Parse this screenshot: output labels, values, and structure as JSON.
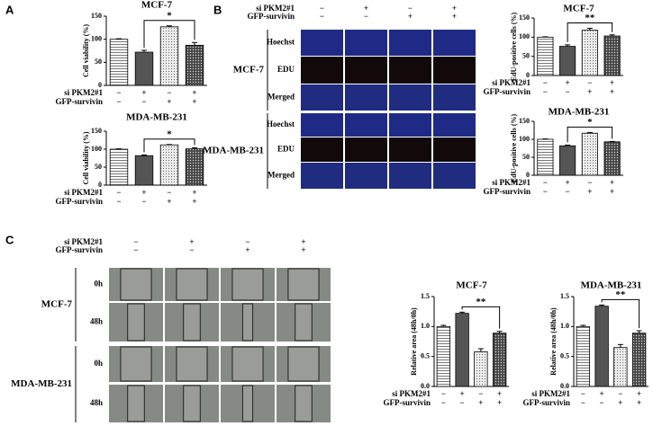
{
  "panel_labels": [
    "A",
    "B",
    "C"
  ],
  "image_grid_b": {
    "conditions": [
      {
        "name": "si PKM2#1",
        "values": [
          "−",
          "+",
          "−",
          "+"
        ]
      },
      {
        "name": "GFP-survivin",
        "values": [
          "−",
          "−",
          "+",
          "+"
        ]
      }
    ],
    "groups": [
      {
        "name": "MCF-7",
        "rows": [
          "Hoechst",
          "EDU",
          "Merged"
        ]
      },
      {
        "name": "MDA-MB-231",
        "rows": [
          "Hoechst",
          "EDU",
          "Merged"
        ]
      }
    ]
  },
  "image_grid_c": {
    "conditions": [
      {
        "name": "si PKM2#1",
        "values": [
          "−",
          "+",
          "−",
          "+"
        ]
      },
      {
        "name": "GFP-survivin",
        "values": [
          "−",
          "−",
          "+",
          "+"
        ]
      }
    ],
    "groups": [
      {
        "name": "MCF-7",
        "rows": [
          "0h",
          "48h"
        ]
      },
      {
        "name": "MDA-MB-231",
        "rows": [
          "0h",
          "48h"
        ]
      }
    ]
  },
  "chart_data": [
    {
      "type": "bar",
      "title": "MCF-7",
      "y_label": "Cell viability (%)",
      "values": [
        100,
        72,
        127,
        87
      ],
      "errors": [
        1,
        4,
        2,
        6
      ],
      "ylim": [
        0,
        150
      ],
      "yticks": [
        0,
        50,
        100,
        150
      ],
      "significance": "*",
      "conditions": [
        {
          "name": "si PKM2#1",
          "values": [
            "−",
            "+",
            "−",
            "+"
          ]
        },
        {
          "name": "GFP-survivin",
          "values": [
            "−",
            "−",
            "+",
            "+"
          ]
        }
      ]
    },
    {
      "type": "bar",
      "title": "MDA-MB-231",
      "y_label": "Cell viability (%)",
      "values": [
        100,
        82,
        112,
        101
      ],
      "errors": [
        1,
        2,
        1,
        3
      ],
      "ylim": [
        0,
        150
      ],
      "yticks": [
        0,
        50,
        100,
        150
      ],
      "significance": "*",
      "conditions": [
        {
          "name": "si PKM2#1",
          "values": [
            "−",
            "+",
            "−",
            "+"
          ]
        },
        {
          "name": "GFP-survivin",
          "values": [
            "−",
            "−",
            "+",
            "+"
          ]
        }
      ]
    },
    {
      "type": "bar",
      "title": "MCF-7",
      "y_label": "EdU-positive cells (%)",
      "values": [
        100,
        76,
        118,
        103
      ],
      "errors": [
        1,
        4,
        5,
        3
      ],
      "ylim": [
        0,
        150
      ],
      "yticks": [
        0,
        50,
        100,
        150
      ],
      "significance": "**",
      "conditions": [
        {
          "name": "si PKM2#1",
          "values": [
            "−",
            "+",
            "−",
            "+"
          ]
        },
        {
          "name": "GFP-survivin",
          "values": [
            "−",
            "−",
            "+",
            "+"
          ]
        }
      ]
    },
    {
      "type": "bar",
      "title": "MDA-MB-231",
      "y_label": "EdU-positive cells (%)",
      "values": [
        100,
        82,
        117,
        93
      ],
      "errors": [
        1,
        2,
        2,
        1
      ],
      "ylim": [
        0,
        150
      ],
      "yticks": [
        0,
        50,
        100,
        150
      ],
      "significance": "*",
      "conditions": [
        {
          "name": "si PKM2#1",
          "values": [
            "−",
            "+",
            "−",
            "+"
          ]
        },
        {
          "name": "GFP-survivin",
          "values": [
            "−",
            "−",
            "+",
            "+"
          ]
        }
      ]
    },
    {
      "type": "bar",
      "title": "MCF-7",
      "y_label": "Relative area (48h/0h)",
      "values": [
        1.0,
        1.22,
        0.58,
        0.89
      ],
      "errors": [
        0.02,
        0.02,
        0.05,
        0.03
      ],
      "ylim": [
        0,
        1.5
      ],
      "yticks": [
        {
          "value": 0,
          "label": "0.0"
        },
        0.5,
        {
          "value": 1,
          "label": "1.0"
        },
        1.5
      ],
      "significance": "**",
      "conditions": [
        {
          "name": "si PKM2#1",
          "values": [
            "−",
            "+",
            "−",
            "+"
          ]
        },
        {
          "name": "GFP-survivin",
          "values": [
            "−",
            "−",
            "+",
            "+"
          ]
        }
      ]
    },
    {
      "type": "bar",
      "title": "MDA-MB-231",
      "y_label": "Relative area (48h/0h)",
      "values": [
        1.0,
        1.34,
        0.65,
        0.89
      ],
      "errors": [
        0.02,
        0.02,
        0.05,
        0.04
      ],
      "ylim": [
        0,
        1.5
      ],
      "yticks": [
        {
          "value": 0,
          "label": "0.0"
        },
        0.5,
        {
          "value": 1,
          "label": "1.0"
        },
        1.5
      ],
      "significance": "**",
      "conditions": [
        {
          "name": "si PKM2#1",
          "values": [
            "−",
            "+",
            "−",
            "+"
          ]
        },
        {
          "name": "GFP-survivin",
          "values": [
            "−",
            "−",
            "+",
            "+"
          ]
        }
      ]
    }
  ]
}
